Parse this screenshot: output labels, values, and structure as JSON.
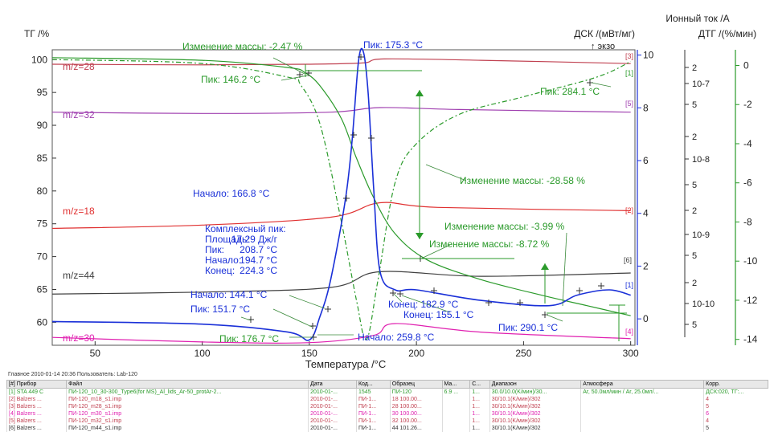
{
  "chart_data": {
    "type": "line",
    "xlabel": "Температура /°C",
    "xlim": [
      30,
      302
    ],
    "x_ticks": [
      50,
      100,
      150,
      200,
      250,
      300
    ],
    "axes": {
      "tg": {
        "label": "ТГ /%",
        "ticks": [
          60,
          65,
          70,
          75,
          80,
          85,
          90,
          95,
          100
        ],
        "range": [
          56.5,
          101.5
        ]
      },
      "dsc": {
        "label": "ДСК /(мВт/мг)",
        "sublabel": "↑ экзо",
        "ticks": [
          0,
          2,
          4,
          6,
          8,
          10
        ],
        "range": [
          -1,
          10.2
        ]
      },
      "ion": {
        "label": "Ионный ток /А",
        "ticks": [
          "2",
          "10-7",
          "5",
          "2",
          "10-8",
          "5",
          "2",
          "10-9",
          "5",
          "2",
          "10-10",
          "5"
        ]
      },
      "dtg": {
        "label": "ДТГ /(%/мин)",
        "ticks": [
          0,
          -2,
          -4,
          -6,
          -8,
          -10,
          -12,
          -14
        ],
        "range": [
          -14.3,
          0.8
        ]
      }
    },
    "series": [
      {
        "name": "m/z=28",
        "color": "#c04050",
        "points": [
          [
            30,
            99.3
          ],
          [
            100,
            99.2
          ],
          [
            150,
            99.3
          ],
          [
            175,
            99.5
          ],
          [
            185,
            100.1
          ],
          [
            230,
            99.9
          ],
          [
            300,
            99.4
          ]
        ]
      },
      {
        "name": "m/z=32",
        "color": "#a040b0",
        "points": [
          [
            30,
            92.0
          ],
          [
            100,
            91.8
          ],
          [
            160,
            92.0
          ],
          [
            183,
            92.7
          ],
          [
            220,
            92.4
          ],
          [
            300,
            92.0
          ]
        ]
      },
      {
        "name": "m/z=18",
        "color": "#e03030",
        "points": [
          [
            30,
            74.3
          ],
          [
            100,
            74.8
          ],
          [
            160,
            76.0
          ],
          [
            183,
            78.2
          ],
          [
            210,
            77.5
          ],
          [
            300,
            77.0
          ]
        ]
      },
      {
        "name": "m/z=44",
        "color": "#404040",
        "points": [
          [
            30,
            64.3
          ],
          [
            100,
            64.6
          ],
          [
            160,
            65.3
          ],
          [
            183,
            67.7
          ],
          [
            230,
            67.0
          ],
          [
            300,
            67.5
          ]
        ]
      },
      {
        "name": "m/z=30",
        "color": "#e020b0",
        "points": [
          [
            30,
            57.7
          ],
          [
            100,
            57.0
          ],
          [
            150,
            56.9
          ],
          [
            180,
            58.0
          ],
          [
            190,
            59.8
          ],
          [
            230,
            58.5
          ],
          [
            300,
            57.5
          ]
        ]
      },
      {
        "name": "ТГ",
        "color": "#2a9a2a",
        "points": [
          [
            30,
            100.3
          ],
          [
            100,
            99.9
          ],
          [
            140,
            98.8
          ],
          [
            148,
            98.0
          ],
          [
            155,
            96.0
          ],
          [
            165,
            91.0
          ],
          [
            172,
            85.0
          ],
          [
            180,
            79.0
          ],
          [
            190,
            73.5
          ],
          [
            205,
            69.5
          ],
          [
            230,
            66.5
          ],
          [
            260,
            64.0
          ],
          [
            280,
            62.5
          ],
          [
            300,
            61.0
          ]
        ]
      },
      {
        "name": "ДТГ",
        "color": "#2a9a2a",
        "dash": "6,3,2,3",
        "points": [
          [
            30,
            0.3
          ],
          [
            100,
            0.1
          ],
          [
            140,
            -0.6
          ],
          [
            146,
            -1.0
          ],
          [
            155,
            -3.0
          ],
          [
            165,
            -8.0
          ],
          [
            172,
            -12.0
          ],
          [
            176.7,
            -14.0
          ],
          [
            182,
            -11.0
          ],
          [
            190,
            -6.0
          ],
          [
            200,
            -4.0
          ],
          [
            220,
            -2.5
          ],
          [
            250,
            -1.6
          ],
          [
            284.1,
            -0.6
          ],
          [
            300,
            0.2
          ]
        ]
      },
      {
        "name": "ДСК",
        "color": "#1a30d8",
        "points": [
          [
            30,
            -0.1
          ],
          [
            100,
            -0.2
          ],
          [
            140,
            -0.5
          ],
          [
            150,
            -0.8
          ],
          [
            155,
            0.1
          ],
          [
            160,
            1.5
          ],
          [
            166.8,
            4.5
          ],
          [
            170,
            6.8
          ],
          [
            173,
            9.8
          ],
          [
            175.3,
            10.1
          ],
          [
            177.5,
            8.5
          ],
          [
            180,
            5.0
          ],
          [
            183,
            1.8
          ],
          [
            190,
            1.1
          ],
          [
            200,
            1.1
          ],
          [
            230,
            0.7
          ],
          [
            262,
            0.5
          ],
          [
            275,
            0.9
          ],
          [
            290,
            1.1
          ],
          [
            300,
            0.9
          ]
        ]
      }
    ],
    "annotations": [
      "Изменение массы: -2.47 %",
      "Пик: 175.3 °C",
      "Пик: 146.2 °C",
      "Пик: 284.1 °C",
      "Изменение массы: -28.58 %",
      "Начало: 166.8 °C",
      "Изменение массы: -3.99 %",
      "Изменение массы: -8.72 %",
      "Комплексный пик:",
      "Площадь:",
      "17.29 Дж/г",
      "Пик:",
      "208.7 °C",
      "Начало:",
      "194.7 °C",
      "Конец:",
      "224.3 °C",
      "Начало: 144.1 °C",
      "Конец: 182.9 °C",
      "Пик: 151.7 °C",
      "Конец: 155.1 °C",
      "Пик: 290.1 °C",
      "Пик: 176.7 °C",
      "Начало: 259.8 °C"
    ],
    "end_labels": [
      "[3]",
      "[1]",
      "[5]",
      "[2]",
      "[6]",
      "[1]",
      "[4]"
    ]
  },
  "footer": {
    "text": "Главное   2010-01-14 20:36   Пользователь: Lab-120"
  },
  "legend_table": {
    "headers": [
      "[#] Прибор",
      "Файл",
      "Дата",
      "Код...",
      "Образец",
      "Ма...",
      "С...",
      "Диапазон",
      "Атмосфера",
      "Корр."
    ],
    "rows": [
      {
        "color": "#2a9a2a",
        "cells": [
          "[1] STA 449 C",
          "ПИ-120_10_30-300_Type6(for MS)_Al_lids_Ar-50_protAr-2...",
          "2010-01-...",
          "1545",
          "ПИ-120",
          "6.9 ...",
          "1...",
          "30.0/10.0(K/мин)/30...",
          "Ar, 50.0мл/мин / Ar, 25.0мл/...",
          "ДСК:020, ТГ:..."
        ]
      },
      {
        "color": "#c04050",
        "cells": [
          "[2] Balzers ...",
          "ПИ-120_m18_s1.imp",
          "2010-01-...",
          "ПИ-1...",
          "18   100.00...",
          "",
          "1...",
          "30/10.1(K/мин)/302",
          "",
          "4"
        ]
      },
      {
        "color": "#c04050",
        "cells": [
          "[3] Balzers ...",
          "ПИ-120_m28_s1.imp",
          "2010-01-...",
          "ПИ-1...",
          "28   100.00...",
          "",
          "1...",
          "30/10.1(K/мин)/302",
          "",
          "5"
        ]
      },
      {
        "color": "#e020b0",
        "cells": [
          "[4] Balzers ...",
          "ПИ-120_m30_s1.imp",
          "2010-01-...",
          "ПИ-1...",
          "30   100.00...",
          "",
          "1...",
          "30/10.1(K/мин)/302",
          "",
          "6"
        ]
      },
      {
        "color": "#c04050",
        "cells": [
          "[5] Balzers ...",
          "ПИ-120_m32_s1.imp",
          "2010-01-...",
          "ПИ-1...",
          "32   100.00...",
          "",
          "1...",
          "30/10.1(K/мин)/302",
          "",
          "4"
        ]
      },
      {
        "color": "#333333",
        "cells": [
          "[6] Balzers ...",
          "ПИ-120_m44_s1.imp",
          "2010-01-...",
          "ПИ-1...",
          "44   101.26...",
          "",
          "1...",
          "30/10.1(K/мин)/302",
          "",
          "5"
        ]
      }
    ]
  }
}
